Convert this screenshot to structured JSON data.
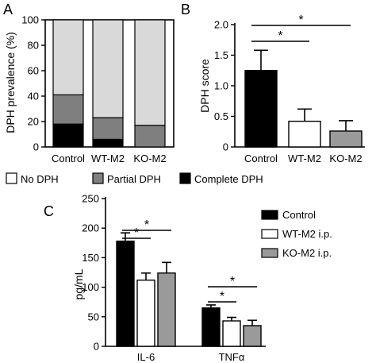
{
  "panel_labels": {
    "a": "A",
    "b": "B",
    "c": "C"
  },
  "colors": {
    "none": "#ffffff",
    "partial": "#7f7f7f",
    "complete": "#000000",
    "light_stack": "#d9d9d9",
    "wt": "#ffffff",
    "ko": "#9a9a9a",
    "control": "#000000"
  },
  "legend_a": {
    "items": [
      {
        "label": "No DPH",
        "color": "#ffffff"
      },
      {
        "label": "Partial DPH",
        "color": "#7f7f7f"
      },
      {
        "label": "Complete DPH",
        "color": "#000000"
      }
    ]
  },
  "legend_c": {
    "items": [
      {
        "label": "Control",
        "color": "#000000"
      },
      {
        "label": "WT-M2 i.p.",
        "color": "#ffffff"
      },
      {
        "label": "KO-M2 i.p.",
        "color": "#9a9a9a"
      }
    ]
  },
  "chart_data": [
    {
      "id": "A",
      "type": "bar",
      "stacked": true,
      "ylabel": "DPH prevalence (%)",
      "ylim": [
        0,
        100
      ],
      "yticks": [
        0,
        20,
        40,
        60,
        80,
        100
      ],
      "categories": [
        "Control",
        "WT-M2",
        "KO-M2"
      ],
      "series": [
        {
          "name": "Complete DPH",
          "values": [
            18,
            6,
            0
          ]
        },
        {
          "name": "Partial DPH",
          "values": [
            23,
            17,
            17
          ]
        },
        {
          "name": "No DPH",
          "values": [
            59,
            77,
            83
          ]
        }
      ]
    },
    {
      "id": "B",
      "type": "bar",
      "ylabel": "DPH score",
      "ylim": [
        0,
        2.0
      ],
      "yticks": [
        "0",
        "0.5",
        "1.0",
        "1.5",
        "2.0"
      ],
      "categories": [
        "Control",
        "WT-M2",
        "KO-M2"
      ],
      "values": [
        1.25,
        0.42,
        0.26
      ],
      "errors": [
        0.33,
        0.2,
        0.17
      ],
      "significance": [
        {
          "from": 0,
          "to": 1,
          "label": "*"
        },
        {
          "from": 0,
          "to": 2,
          "label": "*"
        }
      ]
    },
    {
      "id": "C",
      "type": "bar",
      "ylabel": "pg/mL",
      "ylim": [
        0,
        250
      ],
      "yticks": [
        0,
        50,
        100,
        150,
        200,
        250
      ],
      "categories": [
        "IL-6",
        "TNFα"
      ],
      "series": [
        {
          "name": "Control",
          "values": [
            178,
            65
          ],
          "errors": [
            14,
            5
          ]
        },
        {
          "name": "WT-M2 i.p.",
          "values": [
            112,
            43
          ],
          "errors": [
            12,
            6
          ]
        },
        {
          "name": "KO-M2 i.p.",
          "values": [
            124,
            35
          ],
          "errors": [
            18,
            9
          ]
        }
      ],
      "significance": [
        {
          "category": 0,
          "from": 0,
          "to": 1,
          "label": "*"
        },
        {
          "category": 0,
          "from": 0,
          "to": 2,
          "label": "*"
        },
        {
          "category": 1,
          "from": 0,
          "to": 1,
          "label": "*"
        },
        {
          "category": 1,
          "from": 0,
          "to": 2,
          "label": "*"
        }
      ]
    }
  ]
}
